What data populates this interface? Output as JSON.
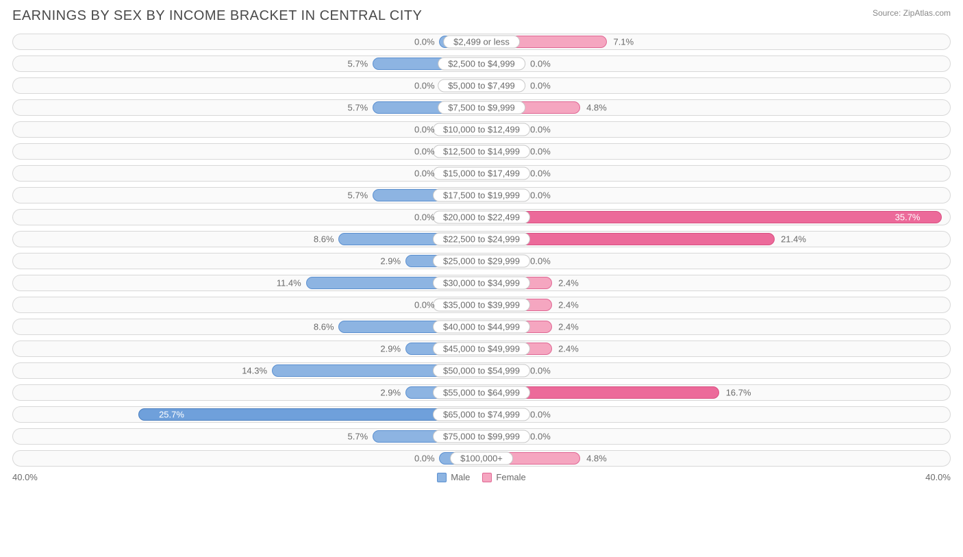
{
  "title": "EARNINGS BY SEX BY INCOME BRACKET IN CENTRAL CITY",
  "source": "Source: ZipAtlas.com",
  "axis_max": 40.0,
  "axis_label_left": "40.0%",
  "axis_label_right": "40.0%",
  "min_bar_pct": 4.5,
  "colors": {
    "male_fill": "#8db4e2",
    "male_border": "#5a8fd0",
    "female_fill": "#f5a6c0",
    "female_border": "#e06693",
    "female_highlight_fill": "#ec6a9a",
    "female_highlight_border": "#d94e81",
    "male_highlight_fill": "#6fa0db",
    "male_highlight_border": "#4a7fc0",
    "row_bg": "#fafafa",
    "row_border": "#d8d8d8",
    "text": "#6a6a6a"
  },
  "legend": {
    "male": "Male",
    "female": "Female"
  },
  "rows": [
    {
      "label": "$2,499 or less",
      "male": 0.0,
      "female": 7.1
    },
    {
      "label": "$2,500 to $4,999",
      "male": 5.7,
      "female": 0.0
    },
    {
      "label": "$5,000 to $7,499",
      "male": 0.0,
      "female": 0.0
    },
    {
      "label": "$7,500 to $9,999",
      "male": 5.7,
      "female": 4.8
    },
    {
      "label": "$10,000 to $12,499",
      "male": 0.0,
      "female": 0.0
    },
    {
      "label": "$12,500 to $14,999",
      "male": 0.0,
      "female": 0.0
    },
    {
      "label": "$15,000 to $17,499",
      "male": 0.0,
      "female": 0.0
    },
    {
      "label": "$17,500 to $19,999",
      "male": 5.7,
      "female": 0.0
    },
    {
      "label": "$20,000 to $22,499",
      "male": 0.0,
      "female": 35.7,
      "female_highlight": true
    },
    {
      "label": "$22,500 to $24,999",
      "male": 8.6,
      "female": 21.4,
      "female_highlight": true
    },
    {
      "label": "$25,000 to $29,999",
      "male": 2.9,
      "female": 0.0
    },
    {
      "label": "$30,000 to $34,999",
      "male": 11.4,
      "female": 2.4
    },
    {
      "label": "$35,000 to $39,999",
      "male": 0.0,
      "female": 2.4
    },
    {
      "label": "$40,000 to $44,999",
      "male": 8.6,
      "female": 2.4
    },
    {
      "label": "$45,000 to $49,999",
      "male": 2.9,
      "female": 2.4
    },
    {
      "label": "$50,000 to $54,999",
      "male": 14.3,
      "female": 0.0
    },
    {
      "label": "$55,000 to $64,999",
      "male": 2.9,
      "female": 16.7,
      "female_highlight": true
    },
    {
      "label": "$65,000 to $74,999",
      "male": 25.7,
      "female": 0.0,
      "male_highlight": true
    },
    {
      "label": "$75,000 to $99,999",
      "male": 5.7,
      "female": 0.0
    },
    {
      "label": "$100,000+",
      "male": 0.0,
      "female": 4.8
    }
  ]
}
